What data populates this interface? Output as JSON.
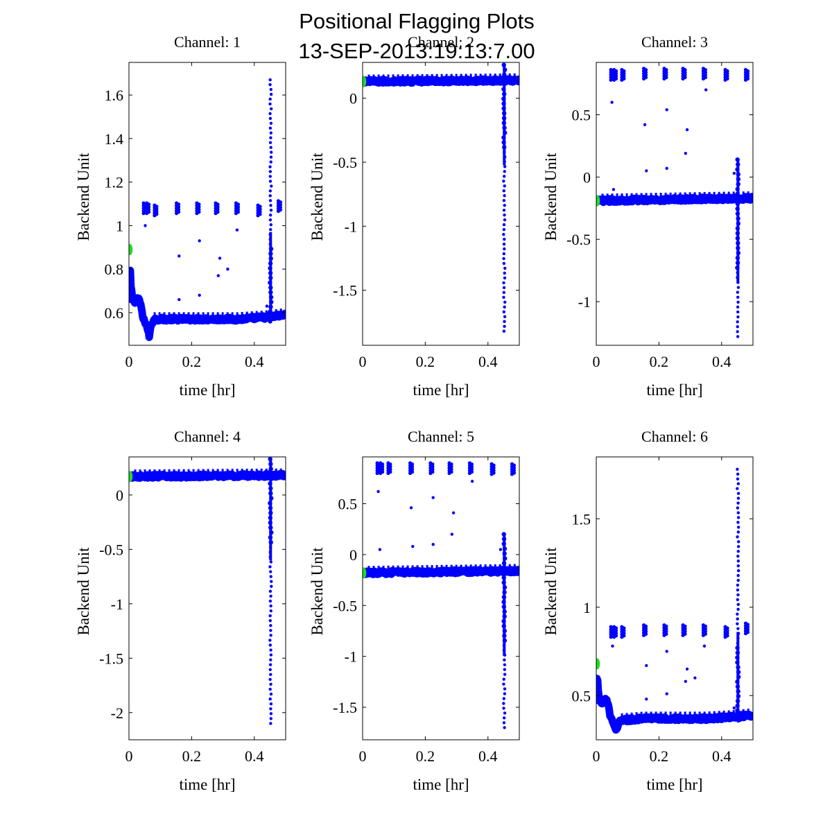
{
  "figure": {
    "title_line1": "Positional Flagging Plots",
    "title_line2": "13-SEP-2013:19:13:7.00"
  },
  "colors": {
    "data": "#0000ff",
    "start_marker": "#22dd22",
    "axes": "#000000"
  },
  "chart_data": [
    {
      "type": "scatter",
      "title": "Channel: 1",
      "xlabel": "time [hr]",
      "ylabel": "Backend Unit",
      "xlim": [
        0,
        0.5
      ],
      "ylim": [
        0.45,
        1.75
      ],
      "xticks": [
        0,
        0.2,
        0.4
      ],
      "xtick_labels": [
        "0",
        "0.2",
        "0.4"
      ],
      "yticks": [
        0.6,
        0.8,
        1,
        1.2,
        1.4,
        1.6
      ],
      "ytick_labels": [
        "0.6",
        "0.8",
        "1",
        "1.2",
        "1.4",
        "1.6"
      ],
      "baseline": [
        [
          0,
          0.66
        ],
        [
          0.003,
          0.84
        ],
        [
          0.006,
          0.72
        ],
        [
          0.012,
          0.66
        ],
        [
          0.02,
          0.65
        ],
        [
          0.03,
          0.67
        ],
        [
          0.04,
          0.62
        ],
        [
          0.045,
          0.57
        ],
        [
          0.055,
          0.55
        ],
        [
          0.065,
          0.49
        ],
        [
          0.07,
          0.54
        ],
        [
          0.08,
          0.57
        ],
        [
          0.15,
          0.57
        ],
        [
          0.25,
          0.57
        ],
        [
          0.35,
          0.57
        ],
        [
          0.45,
          0.58
        ],
        [
          0.5,
          0.59
        ]
      ],
      "outliers": [
        [
          0.05,
          1.08
        ],
        [
          0.06,
          1.08
        ],
        [
          0.085,
          1.07
        ],
        [
          0.155,
          1.08
        ],
        [
          0.22,
          1.08
        ],
        [
          0.28,
          1.08
        ],
        [
          0.345,
          1.08
        ],
        [
          0.415,
          1.07
        ],
        [
          0.48,
          1.09
        ],
        [
          0.052,
          1.0
        ],
        [
          0.16,
          0.86
        ],
        [
          0.225,
          0.93
        ],
        [
          0.29,
          0.85
        ],
        [
          0.345,
          0.98
        ],
        [
          0.16,
          0.66
        ],
        [
          0.225,
          0.68
        ],
        [
          0.285,
          0.77
        ],
        [
          0.315,
          0.8
        ],
        [
          0.44,
          0.63
        ]
      ],
      "spike": {
        "x": 0.452,
        "min": 0.56,
        "max": 1.67
      },
      "start": {
        "x": 0.003,
        "y": 0.89
      }
    },
    {
      "type": "scatter",
      "title": "Channel: 2",
      "xlabel": "time [hr]",
      "ylabel": "Backend Unit",
      "xlim": [
        0,
        0.5
      ],
      "ylim": [
        -1.93,
        0.28
      ],
      "xticks": [
        0,
        0.2,
        0.4
      ],
      "xtick_labels": [
        "0",
        "0.2",
        "0.4"
      ],
      "yticks": [
        -1.5,
        -1,
        -0.5,
        0
      ],
      "ytick_labels": [
        "-1.5",
        "-1",
        "-0.5",
        "0"
      ],
      "baseline": [
        [
          0,
          0.13
        ],
        [
          0.5,
          0.14
        ]
      ],
      "outliers": [],
      "spike": {
        "x": 0.452,
        "min": -1.82,
        "max": 0.26
      },
      "start": {
        "x": 0.003,
        "y": 0.13
      }
    },
    {
      "type": "scatter",
      "title": "Channel: 3",
      "xlabel": "time [hr]",
      "ylabel": "Backend Unit",
      "xlim": [
        0,
        0.5
      ],
      "ylim": [
        -1.35,
        0.92
      ],
      "xticks": [
        0,
        0.2,
        0.4
      ],
      "xtick_labels": [
        "0",
        "0.2",
        "0.4"
      ],
      "yticks": [
        -1,
        -0.5,
        0,
        0.5
      ],
      "ytick_labels": [
        "-1",
        "-0.5",
        "0",
        "0.5"
      ],
      "baseline": [
        [
          0,
          -0.19
        ],
        [
          0.5,
          -0.17
        ]
      ],
      "outliers": [
        [
          0.05,
          0.82
        ],
        [
          0.06,
          0.82
        ],
        [
          0.085,
          0.82
        ],
        [
          0.155,
          0.83
        ],
        [
          0.22,
          0.83
        ],
        [
          0.28,
          0.83
        ],
        [
          0.345,
          0.83
        ],
        [
          0.415,
          0.82
        ],
        [
          0.48,
          0.82
        ],
        [
          0.05,
          0.6
        ],
        [
          0.155,
          0.42
        ],
        [
          0.225,
          0.54
        ],
        [
          0.29,
          0.38
        ],
        [
          0.35,
          0.7
        ],
        [
          0.285,
          0.19
        ],
        [
          0.225,
          0.07
        ],
        [
          0.16,
          0.05
        ],
        [
          0.44,
          0.03
        ],
        [
          0.055,
          -0.1
        ]
      ],
      "spike": {
        "x": 0.452,
        "min": -1.28,
        "max": 0.14
      },
      "start": {
        "x": 0.003,
        "y": -0.19
      }
    },
    {
      "type": "scatter",
      "title": "Channel: 4",
      "xlabel": "time [hr]",
      "ylabel": "Backend Unit",
      "xlim": [
        0,
        0.5
      ],
      "ylim": [
        -2.25,
        0.35
      ],
      "xticks": [
        0,
        0.2,
        0.4
      ],
      "xtick_labels": [
        "0",
        "0.2",
        "0.4"
      ],
      "yticks": [
        -2,
        -1.5,
        -1,
        -0.5,
        0
      ],
      "ytick_labels": [
        "-2",
        "-1.5",
        "-1",
        "-0.5",
        "0"
      ],
      "baseline": [
        [
          0,
          0.17
        ],
        [
          0.5,
          0.18
        ]
      ],
      "outliers": [],
      "spike": {
        "x": 0.452,
        "min": -2.1,
        "max": 0.33
      },
      "start": {
        "x": 0.003,
        "y": 0.17
      }
    },
    {
      "type": "scatter",
      "title": "Channel: 5",
      "xlabel": "time [hr]",
      "ylabel": "Backend Unit",
      "xlim": [
        0,
        0.5
      ],
      "ylim": [
        -1.82,
        0.96
      ],
      "xticks": [
        0,
        0.2,
        0.4
      ],
      "xtick_labels": [
        "0",
        "0.2",
        "0.4"
      ],
      "yticks": [
        -1.5,
        -1,
        -0.5,
        0,
        0.5
      ],
      "ytick_labels": [
        "-1.5",
        "-1",
        "-0.5",
        "0",
        "0.5"
      ],
      "baseline": [
        [
          0,
          -0.18
        ],
        [
          0.5,
          -0.16
        ]
      ],
      "outliers": [
        [
          0.05,
          0.85
        ],
        [
          0.06,
          0.85
        ],
        [
          0.085,
          0.85
        ],
        [
          0.155,
          0.85
        ],
        [
          0.22,
          0.85
        ],
        [
          0.28,
          0.85
        ],
        [
          0.345,
          0.85
        ],
        [
          0.415,
          0.84
        ],
        [
          0.48,
          0.84
        ],
        [
          0.05,
          0.62
        ],
        [
          0.155,
          0.46
        ],
        [
          0.225,
          0.56
        ],
        [
          0.29,
          0.41
        ],
        [
          0.35,
          0.72
        ],
        [
          0.285,
          0.2
        ],
        [
          0.225,
          0.1
        ],
        [
          0.16,
          0.08
        ],
        [
          0.44,
          0.05
        ],
        [
          0.055,
          0.05
        ]
      ],
      "spike": {
        "x": 0.452,
        "min": -1.7,
        "max": 0.2
      },
      "start": {
        "x": 0.003,
        "y": -0.18
      }
    },
    {
      "type": "scatter",
      "title": "Channel: 6",
      "xlabel": "time [hr]",
      "ylabel": "Backend Unit",
      "xlim": [
        0,
        0.5
      ],
      "ylim": [
        0.25,
        1.85
      ],
      "xticks": [
        0,
        0.2,
        0.4
      ],
      "xtick_labels": [
        "0",
        "0.2",
        "0.4"
      ],
      "yticks": [
        0.5,
        1,
        1.5
      ],
      "ytick_labels": [
        "0.5",
        "1",
        "1.5"
      ],
      "baseline": [
        [
          0,
          0.47
        ],
        [
          0.003,
          0.64
        ],
        [
          0.006,
          0.52
        ],
        [
          0.012,
          0.47
        ],
        [
          0.02,
          0.46
        ],
        [
          0.03,
          0.49
        ],
        [
          0.04,
          0.43
        ],
        [
          0.045,
          0.38
        ],
        [
          0.055,
          0.35
        ],
        [
          0.065,
          0.3
        ],
        [
          0.07,
          0.34
        ],
        [
          0.08,
          0.36
        ],
        [
          0.15,
          0.37
        ],
        [
          0.25,
          0.37
        ],
        [
          0.35,
          0.37
        ],
        [
          0.45,
          0.38
        ],
        [
          0.5,
          0.39
        ]
      ],
      "outliers": [
        [
          0.05,
          0.86
        ],
        [
          0.06,
          0.86
        ],
        [
          0.085,
          0.86
        ],
        [
          0.155,
          0.87
        ],
        [
          0.22,
          0.87
        ],
        [
          0.28,
          0.87
        ],
        [
          0.345,
          0.87
        ],
        [
          0.415,
          0.86
        ],
        [
          0.48,
          0.88
        ],
        [
          0.052,
          0.78
        ],
        [
          0.16,
          0.67
        ],
        [
          0.225,
          0.75
        ],
        [
          0.29,
          0.65
        ],
        [
          0.345,
          0.78
        ],
        [
          0.16,
          0.48
        ],
        [
          0.225,
          0.51
        ],
        [
          0.285,
          0.58
        ],
        [
          0.315,
          0.6
        ],
        [
          0.44,
          0.43
        ]
      ],
      "spike": {
        "x": 0.452,
        "min": 0.36,
        "max": 1.78
      },
      "start": {
        "x": 0.003,
        "y": 0.68
      }
    }
  ]
}
